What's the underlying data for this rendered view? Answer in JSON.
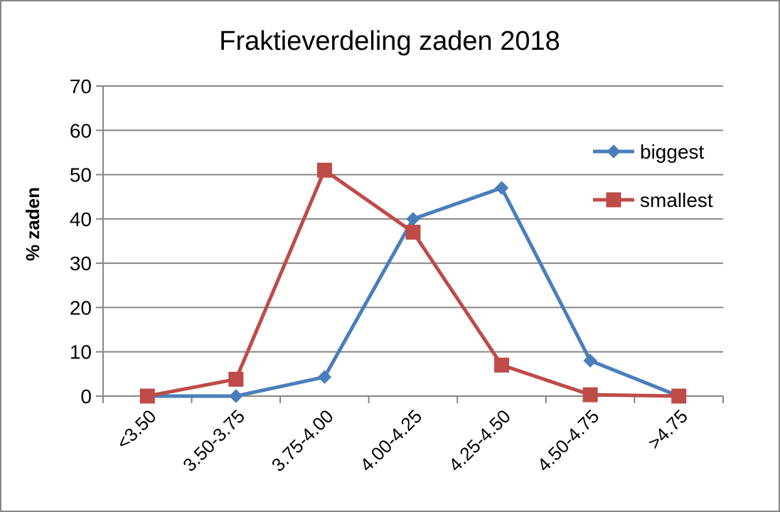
{
  "chart_data": {
    "type": "line",
    "title": "Fraktieverdeling zaden 2018",
    "xlabel": "",
    "ylabel": "% zaden",
    "categories": [
      "<3.50",
      "3.50-3.75",
      "3.75-4.00",
      "4.00-4.25",
      "4.25-4.50",
      "4.50-4.75",
      ">4.75"
    ],
    "ylim": [
      0,
      70
    ],
    "yticks": [
      0,
      10,
      20,
      30,
      40,
      50,
      60,
      70
    ],
    "grid": true,
    "legend": "right",
    "series": [
      {
        "name": "biggest",
        "marker": "diamond",
        "color": "#4a7ebb",
        "values": [
          0,
          0,
          4.3,
          40,
          47,
          8,
          0
        ]
      },
      {
        "name": "smallest",
        "marker": "square",
        "color": "#be4b48",
        "values": [
          0,
          3.8,
          51,
          37,
          7,
          0.3,
          0
        ]
      }
    ]
  }
}
